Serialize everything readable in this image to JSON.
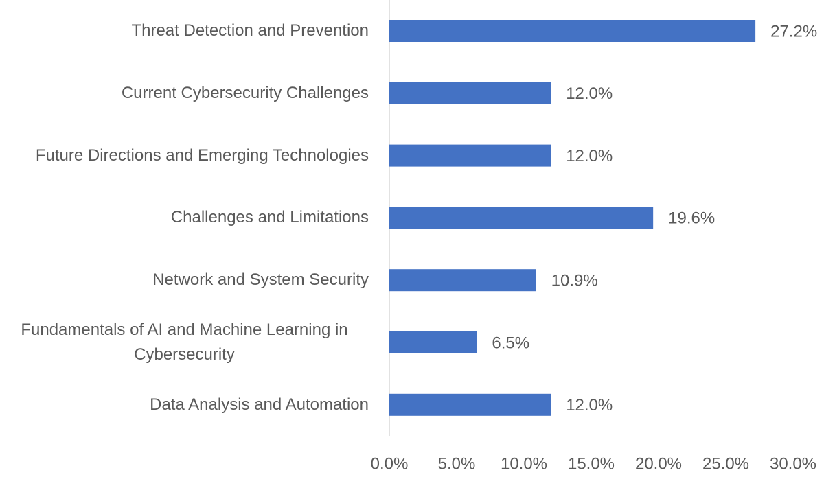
{
  "chart_data": {
    "type": "bar",
    "orientation": "horizontal",
    "categories": [
      "Threat Detection and Prevention",
      "Current Cybersecurity Challenges",
      "Future Directions and Emerging Technologies",
      "Challenges and Limitations",
      "Network and System Security",
      "Fundamentals of AI and Machine Learning in Cybersecurity",
      "Data Analysis and Automation"
    ],
    "values": [
      27.2,
      12.0,
      12.0,
      19.6,
      10.9,
      6.5,
      12.0
    ],
    "value_labels": [
      "27.2%",
      "12.0%",
      "12.0%",
      "19.6%",
      "10.9%",
      "6.5%",
      "12.0%"
    ],
    "color": "#4472c4",
    "xlim": [
      0,
      30
    ],
    "xticks": [
      {
        "value": 0,
        "label": "0.0%"
      },
      {
        "value": 5,
        "label": "5.0%"
      },
      {
        "value": 10,
        "label": "10.0%"
      },
      {
        "value": 15,
        "label": "15.0%"
      },
      {
        "value": 20,
        "label": "20.0%"
      },
      {
        "value": 25,
        "label": "25.0%"
      },
      {
        "value": 30,
        "label": "30.0%"
      }
    ],
    "grid": false
  }
}
